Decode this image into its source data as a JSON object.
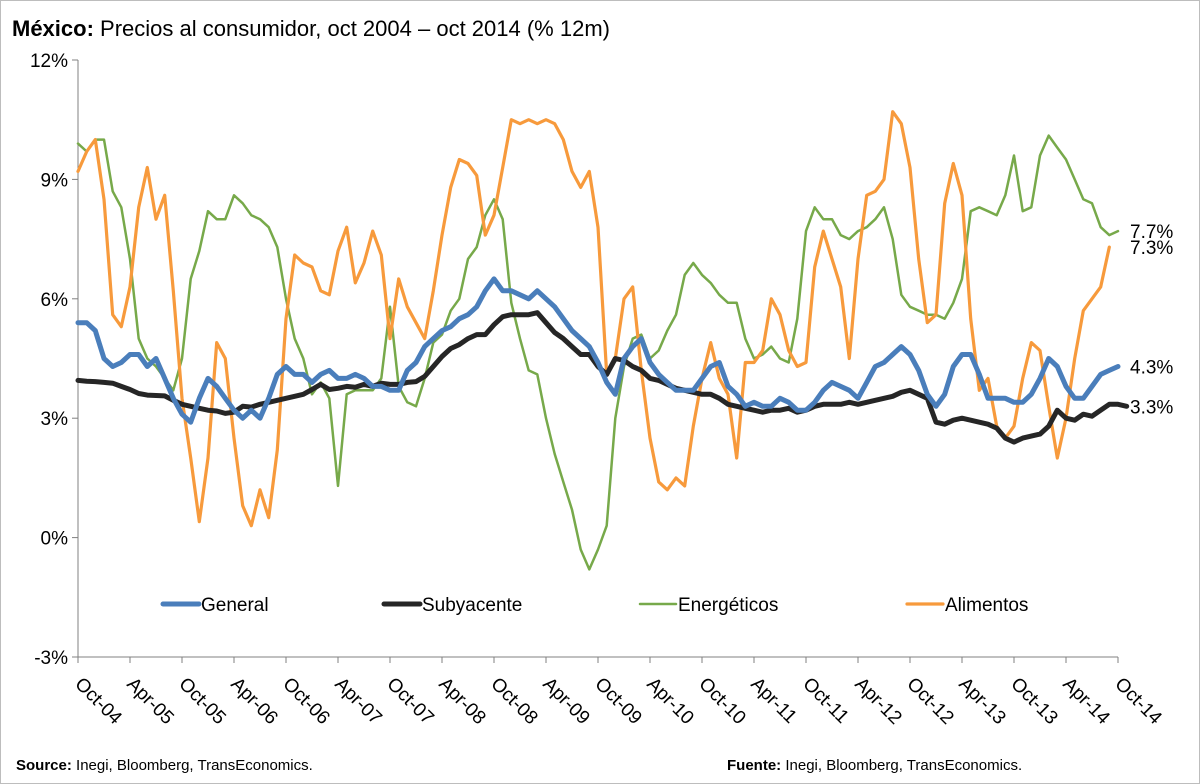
{
  "title": {
    "bold": "México:",
    "text": " Precios al consumidor, oct 2004 – oct 2014 (% 12m)"
  },
  "footer": {
    "source_bold": "Source:",
    "source_text": " Inegi, Bloomberg, TransEconomics.",
    "fuente_bold": "Fuente:",
    "fuente_text": " Inegi, Bloomberg, TransEconomics."
  },
  "chart_data": {
    "type": "line",
    "title": "México: Precios al consumidor, oct 2004 – oct 2014 (% 12m)",
    "xlabel": "",
    "ylabel": "",
    "ylim": [
      -3,
      12
    ],
    "yticks": [
      -3,
      0,
      3,
      6,
      9,
      12
    ],
    "ytick_labels": [
      "-3%",
      "0%",
      "3%",
      "6%",
      "9%",
      "12%"
    ],
    "xtick_labels": [
      "Oct-04",
      "Apr-05",
      "Oct-05",
      "Apr-06",
      "Oct-06",
      "Apr-07",
      "Oct-07",
      "Apr-08",
      "Oct-08",
      "Apr-09",
      "Oct-09",
      "Apr-10",
      "Oct-10",
      "Apr-11",
      "Oct-11",
      "Apr-12",
      "Oct-12",
      "Apr-13",
      "Oct-13",
      "Apr-14",
      "Oct-14"
    ],
    "x_start": "2004-10",
    "x_end": "2014-10",
    "frequency": "monthly",
    "grid": false,
    "legend_position": "bottom",
    "series": [
      {
        "name": "General",
        "color": "#4a7ebb",
        "end_label": "4.3%",
        "values": [
          5.4,
          5.4,
          5.2,
          4.5,
          4.3,
          4.4,
          4.6,
          4.6,
          4.3,
          4.5,
          4.0,
          3.5,
          3.1,
          2.9,
          3.5,
          4.0,
          3.8,
          3.5,
          3.2,
          3.0,
          3.2,
          3.0,
          3.5,
          4.1,
          4.3,
          4.1,
          4.1,
          3.9,
          4.1,
          4.2,
          4.0,
          4.0,
          4.1,
          4.0,
          3.8,
          3.8,
          3.7,
          3.7,
          4.2,
          4.4,
          4.8,
          5.0,
          5.2,
          5.3,
          5.5,
          5.6,
          5.8,
          6.2,
          6.5,
          6.2,
          6.2,
          6.1,
          6.0,
          6.2,
          6.0,
          5.8,
          5.5,
          5.2,
          5.0,
          4.8,
          4.4,
          3.9,
          3.6,
          4.5,
          4.8,
          5.0,
          4.4,
          4.1,
          3.9,
          3.7,
          3.7,
          3.7,
          4.0,
          4.3,
          4.4,
          3.8,
          3.6,
          3.3,
          3.4,
          3.3,
          3.3,
          3.5,
          3.4,
          3.2,
          3.2,
          3.4,
          3.7,
          3.9,
          3.8,
          3.7,
          3.5,
          3.9,
          4.3,
          4.4,
          4.6,
          4.8,
          4.6,
          4.2,
          3.6,
          3.3,
          3.6,
          4.3,
          4.6,
          4.6,
          4.1,
          3.5,
          3.5,
          3.5,
          3.4,
          3.4,
          3.6,
          4.0,
          4.5,
          4.3,
          3.8,
          3.5,
          3.5,
          3.8,
          4.1,
          4.2,
          4.3
        ]
      },
      {
        "name": "Subyacente",
        "color": "#262626",
        "end_label": "3.3%",
        "values": [
          3.95,
          3.93,
          3.92,
          3.9,
          3.88,
          3.8,
          3.72,
          3.62,
          3.58,
          3.57,
          3.56,
          3.45,
          3.35,
          3.3,
          3.25,
          3.2,
          3.18,
          3.12,
          3.15,
          3.3,
          3.28,
          3.35,
          3.4,
          3.45,
          3.5,
          3.55,
          3.6,
          3.72,
          3.85,
          3.72,
          3.75,
          3.8,
          3.78,
          3.85,
          3.8,
          3.88,
          3.85,
          3.85,
          3.9,
          3.92,
          4.05,
          4.3,
          4.55,
          4.75,
          4.85,
          5.0,
          5.1,
          5.1,
          5.35,
          5.55,
          5.6,
          5.6,
          5.6,
          5.65,
          5.4,
          5.15,
          5.0,
          4.8,
          4.6,
          4.6,
          4.3,
          4.1,
          4.5,
          4.45,
          4.3,
          4.2,
          4.0,
          3.95,
          3.85,
          3.75,
          3.7,
          3.65,
          3.6,
          3.6,
          3.5,
          3.35,
          3.3,
          3.25,
          3.2,
          3.15,
          3.2,
          3.2,
          3.25,
          3.15,
          3.2,
          3.3,
          3.35,
          3.35,
          3.35,
          3.4,
          3.35,
          3.4,
          3.45,
          3.5,
          3.55,
          3.65,
          3.7,
          3.6,
          3.5,
          2.9,
          2.85,
          2.95,
          3.0,
          2.95,
          2.9,
          2.85,
          2.75,
          2.5,
          2.4,
          2.5,
          2.55,
          2.6,
          2.8,
          3.2,
          3.0,
          2.95,
          3.1,
          3.05,
          3.2,
          3.35,
          3.35,
          3.3
        ]
      },
      {
        "name": "Energéticos",
        "color": "#77a94a",
        "end_label": "7.7%",
        "values": [
          9.9,
          9.7,
          10.0,
          10.0,
          8.7,
          8.3,
          7.0,
          5.0,
          4.5,
          4.3,
          4.0,
          3.7,
          4.5,
          6.5,
          7.2,
          8.2,
          8.0,
          8.0,
          8.6,
          8.4,
          8.1,
          8.0,
          7.8,
          7.3,
          6.0,
          5.0,
          4.5,
          3.6,
          3.9,
          3.5,
          1.3,
          3.6,
          3.7,
          3.7,
          3.7,
          4.0,
          5.8,
          3.8,
          3.4,
          3.3,
          4.0,
          4.9,
          5.1,
          5.7,
          6.0,
          7.0,
          7.3,
          8.1,
          8.5,
          8.0,
          5.9,
          5.0,
          4.2,
          4.1,
          3.0,
          2.1,
          1.4,
          0.7,
          -0.3,
          -0.8,
          -0.3,
          0.3,
          3.0,
          4.3,
          5.0,
          5.1,
          4.5,
          4.7,
          5.2,
          5.6,
          6.6,
          6.9,
          6.6,
          6.4,
          6.1,
          5.9,
          5.9,
          5.0,
          4.5,
          4.6,
          4.8,
          4.5,
          4.4,
          5.5,
          7.7,
          8.3,
          8.0,
          8.0,
          7.6,
          7.5,
          7.7,
          7.8,
          8.0,
          8.3,
          7.5,
          6.1,
          5.8,
          5.7,
          5.6,
          5.6,
          5.5,
          5.9,
          6.5,
          8.2,
          8.3,
          8.2,
          8.1,
          8.6,
          9.6,
          8.2,
          8.3,
          9.6,
          10.1,
          9.8,
          9.5,
          9.0,
          8.5,
          8.4,
          7.8,
          7.6,
          7.7
        ]
      },
      {
        "name": "Alimentos",
        "color": "#f79a3c",
        "end_label": "7.3%",
        "values": [
          9.2,
          9.7,
          10.0,
          8.5,
          5.6,
          5.3,
          6.3,
          8.3,
          9.3,
          8.0,
          8.6,
          6.2,
          3.5,
          2.0,
          0.4,
          2.0,
          4.9,
          4.5,
          2.5,
          0.8,
          0.3,
          1.2,
          0.5,
          2.2,
          5.5,
          7.1,
          6.9,
          6.8,
          6.2,
          6.1,
          7.2,
          7.8,
          6.4,
          6.9,
          7.7,
          7.1,
          5.0,
          6.5,
          5.8,
          5.4,
          5.0,
          6.2,
          7.6,
          8.8,
          9.5,
          9.4,
          9.1,
          7.6,
          8.1,
          9.3,
          10.5,
          10.4,
          10.5,
          10.4,
          10.5,
          10.4,
          10.0,
          9.2,
          8.8,
          9.2,
          7.8,
          4.1,
          4.5,
          6.0,
          6.3,
          4.2,
          2.5,
          1.4,
          1.2,
          1.5,
          1.3,
          2.8,
          4.0,
          4.9,
          4.0,
          3.6,
          2.0,
          4.4,
          4.4,
          4.7,
          6.0,
          5.6,
          4.7,
          4.3,
          4.4,
          6.8,
          7.7,
          7.0,
          6.3,
          4.5,
          7.0,
          8.6,
          8.7,
          9.0,
          10.7,
          10.4,
          9.3,
          7.0,
          5.4,
          5.6,
          8.4,
          9.4,
          8.6,
          5.5,
          3.7,
          4.0,
          2.8,
          2.5,
          2.8,
          4.0,
          4.9,
          4.7,
          3.3,
          2.0,
          3.0,
          4.5,
          5.7,
          6.0,
          6.3,
          7.3
        ]
      }
    ]
  }
}
